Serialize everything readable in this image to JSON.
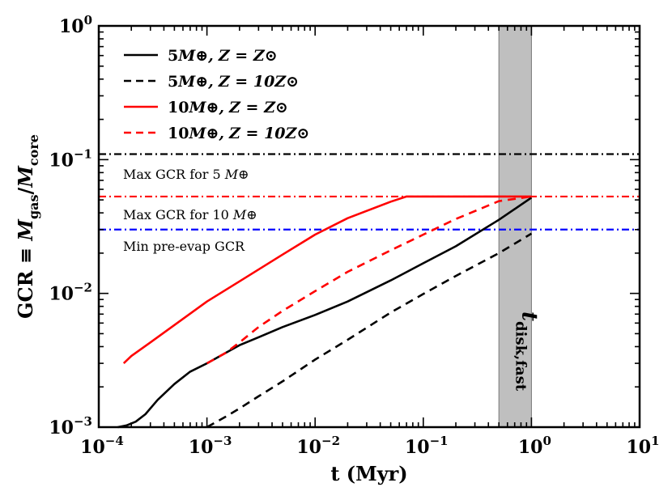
{
  "chart_data": {
    "type": "line",
    "xscale": "log",
    "yscale": "log",
    "xlim": [
      0.0001,
      10
    ],
    "ylim": [
      0.001,
      1
    ],
    "xlabel": "t (Myr)",
    "ylabel": "GCR ≡ M_gas/M_core",
    "x_tick_labels": [
      {
        "value": 0.0001,
        "base": "10",
        "exp": "−4"
      },
      {
        "value": 0.001,
        "base": "10",
        "exp": "−3"
      },
      {
        "value": 0.01,
        "base": "10",
        "exp": "−2"
      },
      {
        "value": 0.1,
        "base": "10",
        "exp": "−1"
      },
      {
        "value": 1,
        "base": "10",
        "exp": "0"
      },
      {
        "value": 10,
        "base": "10",
        "exp": "1"
      }
    ],
    "y_tick_labels": [
      {
        "value": 0.001,
        "base": "10",
        "exp": "−3"
      },
      {
        "value": 0.01,
        "base": "10",
        "exp": "−2"
      },
      {
        "value": 0.1,
        "base": "10",
        "exp": "−1"
      },
      {
        "value": 1,
        "base": "10",
        "exp": "0"
      }
    ],
    "series": [
      {
        "name": "5M⊕, Z = Z⊙",
        "color": "#000000",
        "dash": "solid",
        "x": [
          0.00015,
          0.00018,
          0.00022,
          0.00027,
          0.00035,
          0.0005,
          0.0007,
          0.001,
          0.0015,
          0.002,
          0.003,
          0.005,
          0.01,
          0.02,
          0.05,
          0.1,
          0.2,
          0.5,
          1.0
        ],
        "y": [
          0.001,
          0.00103,
          0.0011,
          0.00125,
          0.0016,
          0.0021,
          0.0026,
          0.003,
          0.0036,
          0.0041,
          0.0047,
          0.0056,
          0.0069,
          0.0087,
          0.0125,
          0.0168,
          0.0225,
          0.0355,
          0.052
        ]
      },
      {
        "name": "5M⊕, Z = 10Z⊙",
        "color": "#000000",
        "dash": "dashed",
        "x": [
          0.001,
          0.0015,
          0.002,
          0.003,
          0.005,
          0.01,
          0.02,
          0.05,
          0.1,
          0.2,
          0.5,
          1.0
        ],
        "y": [
          0.001,
          0.0012,
          0.00138,
          0.0017,
          0.0022,
          0.0032,
          0.0045,
          0.0072,
          0.0099,
          0.0135,
          0.02,
          0.028
        ]
      },
      {
        "name": "10M⊕, Z = Z⊙",
        "color": "#ff0000",
        "dash": "solid",
        "x": [
          0.00017,
          0.0002,
          0.0003,
          0.0005,
          0.001,
          0.002,
          0.005,
          0.01,
          0.02,
          0.05,
          0.07,
          0.1,
          0.2,
          0.5,
          1.0
        ],
        "y": [
          0.003,
          0.0034,
          0.0043,
          0.0058,
          0.0087,
          0.0123,
          0.0195,
          0.0275,
          0.0365,
          0.0485,
          0.053,
          0.053,
          0.053,
          0.053,
          0.053
        ]
      },
      {
        "name": "10M⊕, Z = 10Z⊙",
        "color": "#ff0000",
        "dash": "dashed",
        "x": [
          0.001,
          0.0015,
          0.002,
          0.003,
          0.005,
          0.01,
          0.02,
          0.05,
          0.1,
          0.2,
          0.5,
          1.0
        ],
        "y": [
          0.003,
          0.0036,
          0.0043,
          0.0056,
          0.0074,
          0.0104,
          0.0145,
          0.021,
          0.0275,
          0.036,
          0.049,
          0.053
        ]
      }
    ],
    "reference_lines": [
      {
        "name": "Max GCR for 5 M⊕",
        "label_prefix": "Max GCR for 5 ",
        "label_symbol": "M⊕",
        "y": 0.11,
        "color": "#000000",
        "label_color": "#000000"
      },
      {
        "name": "Max GCR for 10 M⊕",
        "label_prefix": "Max GCR for 10 ",
        "label_symbol": "M⊕",
        "y": 0.053,
        "color": "#ff0000",
        "label_color": "#ff0000"
      },
      {
        "name": "Min pre-evap GCR",
        "label_prefix": "Min pre-evap GCR",
        "label_symbol": "",
        "y": 0.03,
        "color": "#0000ff",
        "label_color": "#0000ff"
      }
    ],
    "shaded_band": {
      "x_min": 0.5,
      "x_max": 1.0,
      "color": "#bfbfbf",
      "label": "t",
      "label_subscript": "disk,fast"
    },
    "legend": {
      "position": "top-left",
      "entries": [
        {
          "mass": "5",
          "metal": "Z⊙",
          "color": "#000000",
          "dash": "solid"
        },
        {
          "mass": "5",
          "metal": "10Z⊙",
          "color": "#000000",
          "dash": "dashed"
        },
        {
          "mass": "10",
          "metal": "Z⊙",
          "color": "#ff0000",
          "dash": "solid"
        },
        {
          "mass": "10",
          "metal": "10Z⊙",
          "color": "#ff0000",
          "dash": "dashed"
        }
      ],
      "text": {
        "earth": "M⊕,",
        "z_eq": "Z = "
      }
    },
    "ylabel_parts": {
      "lhs": "GCR ≡ ",
      "m1": "M",
      "sub1": "gas",
      "slash": "/",
      "m2": "M",
      "sub2": "core"
    }
  }
}
